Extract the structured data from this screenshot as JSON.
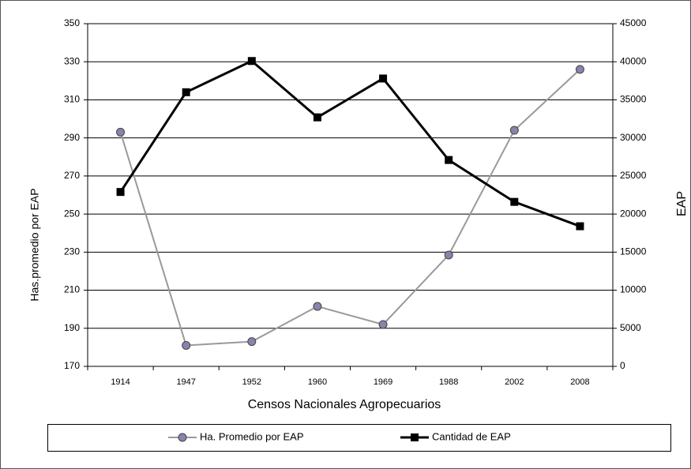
{
  "chart_data": {
    "type": "line",
    "x_label": "Censos Nacionales Agropecuarios",
    "y_label": "Has.promedio por EAP",
    "y2_label": "EAP",
    "categories": [
      "1914",
      "1947",
      "1952",
      "1960",
      "1969",
      "1988",
      "2002",
      "2008"
    ],
    "series": [
      {
        "name": "Ha. Promedio por EAP",
        "color": "#999999",
        "marker": "circle",
        "values": [
          293,
          181,
          183,
          201.5,
          192,
          228.5,
          294,
          326
        ]
      },
      {
        "name": "Cantidad de EAP",
        "color": "#000000",
        "marker": "square",
        "axis": "y2",
        "values": [
          22900,
          36000,
          40100,
          32700,
          37800,
          27100,
          21600,
          18400
        ]
      }
    ],
    "ylim": [
      170,
      350
    ],
    "yticks": [
      170,
      190,
      210,
      230,
      250,
      270,
      290,
      310,
      330,
      350
    ],
    "y2lim": [
      0,
      45000
    ],
    "y2ticks": [
      0,
      5000,
      10000,
      15000,
      20000,
      25000,
      30000,
      35000,
      40000,
      45000
    ],
    "grid": true,
    "legend": "bottom"
  }
}
